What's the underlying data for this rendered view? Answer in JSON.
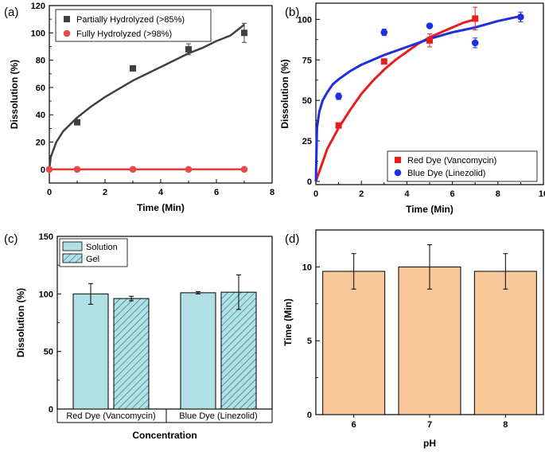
{
  "chart_data": [
    {
      "panel": "(a)",
      "type": "scatter",
      "xlabel": "Time (Min)",
      "ylabel": "Dissolution (%)",
      "xlim": [
        0,
        8
      ],
      "ylim": [
        -10,
        120
      ],
      "xticks": [
        0,
        2,
        4,
        6,
        8
      ],
      "yticks": [
        0,
        20,
        40,
        60,
        80,
        100,
        120
      ],
      "legend_position": "top-left",
      "series": [
        {
          "name": "Partially Hydrolyzed (>85%)",
          "color": "#404040",
          "marker": "square",
          "x": [
            1,
            3,
            5,
            7
          ],
          "y": [
            34.5,
            74,
            88,
            100
          ],
          "err": [
            0,
            0,
            4,
            7
          ],
          "fit": {
            "x": [
              0,
              0.05,
              0.25,
              0.5,
              1,
              1.5,
              2,
              2.5,
              3,
              3.5,
              4,
              4.5,
              5,
              5.5,
              6,
              6.5,
              7
            ],
            "y": [
              0,
              9,
              20,
              28,
              38,
              46,
              53,
              59,
              65,
              70,
              75,
              80,
              85,
              89,
              94,
              98,
              106
            ],
            "color": "#404040"
          }
        },
        {
          "name": "Fully Hydrolyzed (>98%)",
          "color": "#e84a4a",
          "marker": "circle",
          "x": [
            0,
            1,
            3,
            5,
            7
          ],
          "y": [
            0,
            0,
            0,
            0,
            0
          ],
          "fit": {
            "x": [
              0,
              7
            ],
            "y": [
              0,
              0
            ],
            "color": "#e83a3a"
          }
        }
      ]
    },
    {
      "panel": "(b)",
      "type": "scatter",
      "xlabel": "Time (Min)",
      "ylabel": "Dissolution (%)",
      "xlim": [
        0,
        10
      ],
      "ylim": [
        -2,
        110
      ],
      "xticks": [
        0,
        2,
        4,
        6,
        8,
        10
      ],
      "yticks": [
        0,
        25,
        50,
        75,
        100
      ],
      "legend_position": "bottom-right",
      "series": [
        {
          "name": "Red Dye (Vancomycin)",
          "color": "#e81e1e",
          "marker": "square",
          "x": [
            1,
            3,
            5,
            7
          ],
          "y": [
            34.5,
            74,
            87,
            100.5
          ],
          "err": [
            0,
            0,
            4,
            7
          ],
          "fit": {
            "x": [
              0,
              0.5,
              1,
              1.5,
              2,
              2.5,
              3,
              3.5,
              4,
              4.5,
              5,
              5.5,
              6,
              6.5,
              7
            ],
            "y": [
              0,
              20,
              33,
              44,
              54,
              62,
              69,
              75,
              80,
              85,
              89,
              92,
              95,
              98,
              100
            ],
            "color": "#e81e1e"
          }
        },
        {
          "name": "Blue Dye (Linezolid)",
          "color": "#1f2fe0",
          "marker": "circle",
          "x": [
            1,
            3,
            5,
            7,
            9
          ],
          "y": [
            52.5,
            92,
            96,
            85.5,
            101.5
          ],
          "err": [
            2,
            2,
            1,
            3,
            3
          ],
          "fit": {
            "x": [
              0,
              0.05,
              0.15,
              0.3,
              0.5,
              0.75,
              1,
              1.5,
              2,
              3,
              4,
              5,
              6,
              7,
              8,
              9
            ],
            "y": [
              0,
              33,
              43,
              50,
              55,
              60,
              63,
              68,
              72,
              78,
              83,
              88,
              92,
              95,
              99,
              102
            ],
            "color": "#1f2fe0"
          }
        }
      ]
    },
    {
      "panel": "(c)",
      "type": "bar",
      "xlabel": "Concentration",
      "ylabel": "Dissolution (%)",
      "ylim": [
        0,
        150
      ],
      "yticks": [
        0,
        50,
        100,
        150
      ],
      "categories": [
        "Red Dye (Vancomycin)",
        "Blue Dye (Linezolid)"
      ],
      "legend_position": "top-left",
      "series": [
        {
          "name": "Solution",
          "color": "#b0e0e6",
          "hatch": false,
          "values": [
            100,
            101
          ],
          "err": [
            9,
            1
          ]
        },
        {
          "name": "Gel",
          "color": "#b0e0e6",
          "hatch": true,
          "values": [
            96,
            101.5
          ],
          "err": [
            2,
            15
          ]
        }
      ]
    },
    {
      "panel": "(d)",
      "type": "bar",
      "xlabel": "pH",
      "ylabel": "Time (Min)",
      "ylim": [
        0,
        12.5
      ],
      "yticks": [
        0,
        5,
        10
      ],
      "categories": [
        "6",
        "7",
        "8"
      ],
      "series": [
        {
          "color": "#f8c89a",
          "values": [
            9.7,
            10.0,
            9.7
          ],
          "err": [
            1.2,
            1.5,
            1.2
          ]
        }
      ]
    }
  ]
}
